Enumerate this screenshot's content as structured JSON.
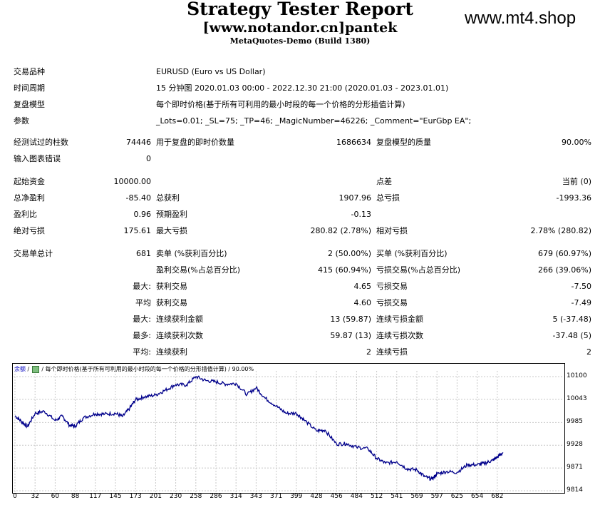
{
  "header": {
    "title": "Strategy Tester Report",
    "subtitle": "[www.notandor.cn]pantek",
    "build": "MetaQuotes-Demo (Build 1380)",
    "watermark": "www.mt4.shop"
  },
  "info": {
    "symbol_label": "交易品种",
    "symbol_value": "EURUSD (Euro vs US Dollar)",
    "period_label": "时间周期",
    "period_value": "15 分钟图 2020.01.03 00:00 - 2022.12.30 21:00 (2020.01.03 - 2023.01.01)",
    "model_label": "复盘模型",
    "model_value": "每个即时价格(基于所有可利用的最小时段的每一个价格的分形插值计算)",
    "params_label": "参数",
    "params_value": "_Lots=0.01; _SL=75; _TP=46; _MagicNumber=46226; _Comment=\"EurGbp EA\";"
  },
  "bars": {
    "bars_label": "经测试过的柱数",
    "bars_value": "74446",
    "ticks_label": "用于复盘的即时价数量",
    "ticks_value": "1686634",
    "quality_label": "复盘模型的质量",
    "quality_value": "90.00%",
    "errors_label": "输入图表错误",
    "errors_value": "0"
  },
  "stats": {
    "deposit_label": "起始资金",
    "deposit_value": "10000.00",
    "spread_label": "点差",
    "spread_value": "当前 (0)",
    "netprofit_label": "总净盈利",
    "netprofit_value": "-85.40",
    "grossprofit_label": "总获利",
    "grossprofit_value": "1907.96",
    "grossloss_label": "总亏损",
    "grossloss_value": "-1993.36",
    "pf_label": "盈利比",
    "pf_value": "0.96",
    "payoff_label": "预期盈利",
    "payoff_value": "-0.13",
    "absdd_label": "绝对亏损",
    "absdd_value": "175.61",
    "maxdd_label": "最大亏损",
    "maxdd_value": "280.82 (2.78%)",
    "reldd_label": "相对亏损",
    "reldd_value": "2.78% (280.82)"
  },
  "trades": {
    "total_label": "交易单总计",
    "total_value": "681",
    "short_label": "卖单 (%获利百分比)",
    "short_value": "2 (50.00%)",
    "long_label": "买单 (%获利百分比)",
    "long_value": "679 (60.97%)",
    "profit_trades_label": "盈利交易(%占总百分比)",
    "profit_trades_value": "415 (60.94%)",
    "loss_trades_label": "亏损交易(%占总百分比)",
    "loss_trades_value": "266 (39.06%)",
    "largest_prefix": "最大:",
    "avg_prefix": "平均",
    "max_prefix": "最大:",
    "most_prefix": "最多:",
    "avg2_prefix": "平均:",
    "largest_profit_label": "获利交易",
    "largest_profit_value": "4.65",
    "largest_loss_label": "亏损交易",
    "largest_loss_value": "-7.50",
    "avg_profit_label": "获利交易",
    "avg_profit_value": "4.60",
    "avg_loss_label": "亏损交易",
    "avg_loss_value": "-7.49",
    "max_consec_wins_label": "连续获利金额",
    "max_consec_wins_value": "13 (59.87)",
    "max_consec_losses_label": "连续亏损金额",
    "max_consec_losses_value": "5 (-37.48)",
    "max_consec_profit_label": "连续获利次数",
    "max_consec_profit_value": "59.87 (13)",
    "max_consec_loss_label": "连续亏损次数",
    "max_consec_loss_value": "-37.48 (5)",
    "avg_consec_wins_label": "连续获利",
    "avg_consec_wins_value": "2",
    "avg_consec_losses_label": "连续亏损",
    "avg_consec_losses_value": "2"
  },
  "chart_legend": {
    "balance": "余额",
    "separator": "/",
    "model_text": "/ 每个即时价格(基于所有可利用的最小时段的每一个价格的分形插值计算) / 90.00%"
  },
  "colors": {
    "line": "#00008b",
    "grid": "#c8c8c8",
    "legend_text": "#0000c0"
  },
  "chart_data": {
    "type": "line",
    "x_ticks": [
      0,
      32,
      60,
      88,
      117,
      145,
      173,
      201,
      230,
      258,
      286,
      314,
      343,
      371,
      399,
      428,
      456,
      484,
      512,
      541,
      569,
      597,
      625,
      654,
      682
    ],
    "y_ticks": [
      10100,
      10043,
      9985,
      9928,
      9871,
      9814
    ],
    "ylim": [
      9814,
      10110
    ],
    "xlim": [
      0,
      700
    ],
    "series": [
      {
        "x": [
          0,
          10,
          20,
          32,
          45,
          60,
          70,
          80,
          88,
          100,
          117,
          130,
          145,
          155,
          165,
          173,
          185,
          201,
          215,
          230,
          245,
          258,
          272,
          286,
          300,
          314,
          330,
          343,
          355,
          371,
          385,
          399,
          410,
          428,
          440,
          456,
          470,
          484,
          500,
          512,
          525,
          541,
          555,
          569,
          580,
          590,
          597,
          610,
          625,
          640,
          654,
          665,
          675,
          682,
          690
        ],
        "y": [
          10002,
          9988,
          9975,
          10008,
          10013,
          9990,
          10001,
          9978,
          9976,
          9997,
          10007,
          10006,
          10008,
          10000,
          10021,
          10042,
          10049,
          10054,
          10066,
          10080,
          10079,
          10100,
          10090,
          10087,
          10081,
          10083,
          10055,
          10072,
          10047,
          10026,
          10008,
          10008,
          9992,
          9964,
          9966,
          9931,
          9932,
          9923,
          9919,
          9895,
          9883,
          9887,
          9869,
          9866,
          9849,
          9843,
          9856,
          9862,
          9860,
          9879,
          9879,
          9883,
          9890,
          9898,
          9910
        ]
      }
    ]
  }
}
